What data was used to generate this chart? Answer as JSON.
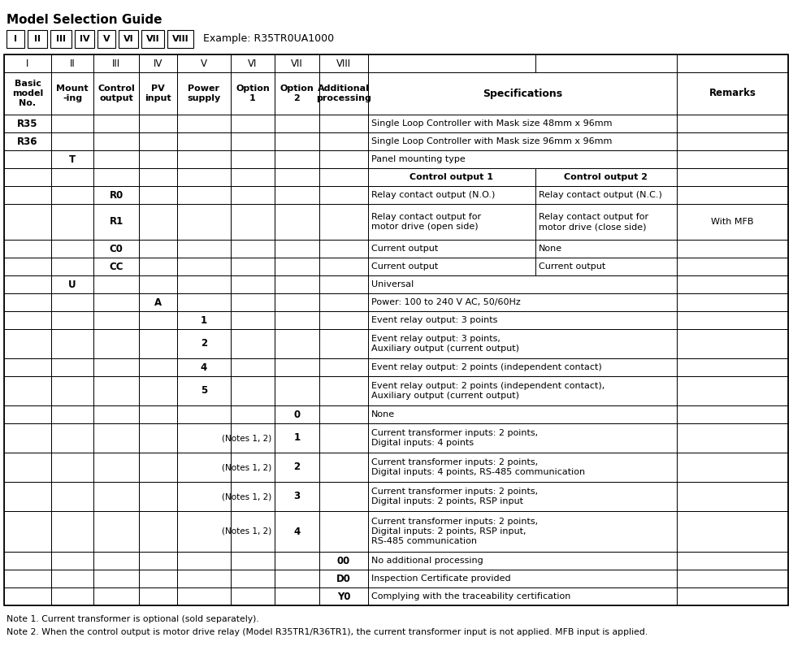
{
  "title": "Model Selection Guide",
  "example_text": "Example: R35TR0UA1000",
  "roman_numerals": [
    "I",
    "II",
    "III",
    "IV",
    "V",
    "VI",
    "VII",
    "VIII"
  ],
  "note1": "Note 1. Current transformer is optional (sold separately).",
  "note2": "Note 2. When the control output is motor drive relay (Model R35TR1/R36TR1), the current transformer input is not applied. MFB input is applied.",
  "bg_color": "#ffffff"
}
